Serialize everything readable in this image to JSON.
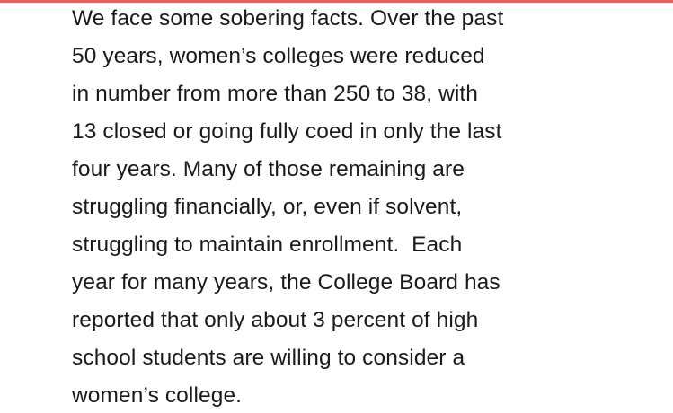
{
  "accent_color": "#e8625c",
  "text_color": "#1a1a1a",
  "paragraph": {
    "lines": [
      "We face some sobering facts. Over the past",
      "50 years, women’s colleges were reduced",
      "in number from more than 250 to 38, with",
      "13 closed or going fully coed in only the last",
      "four years. Many of those remaining are",
      "struggling financially, or, even if solvent,",
      "struggling to maintain enrollment.  Each",
      "year for many years, the College Board has",
      "reported that only about 3 percent of high",
      "school students are willing to consider a",
      "women’s college."
    ]
  }
}
